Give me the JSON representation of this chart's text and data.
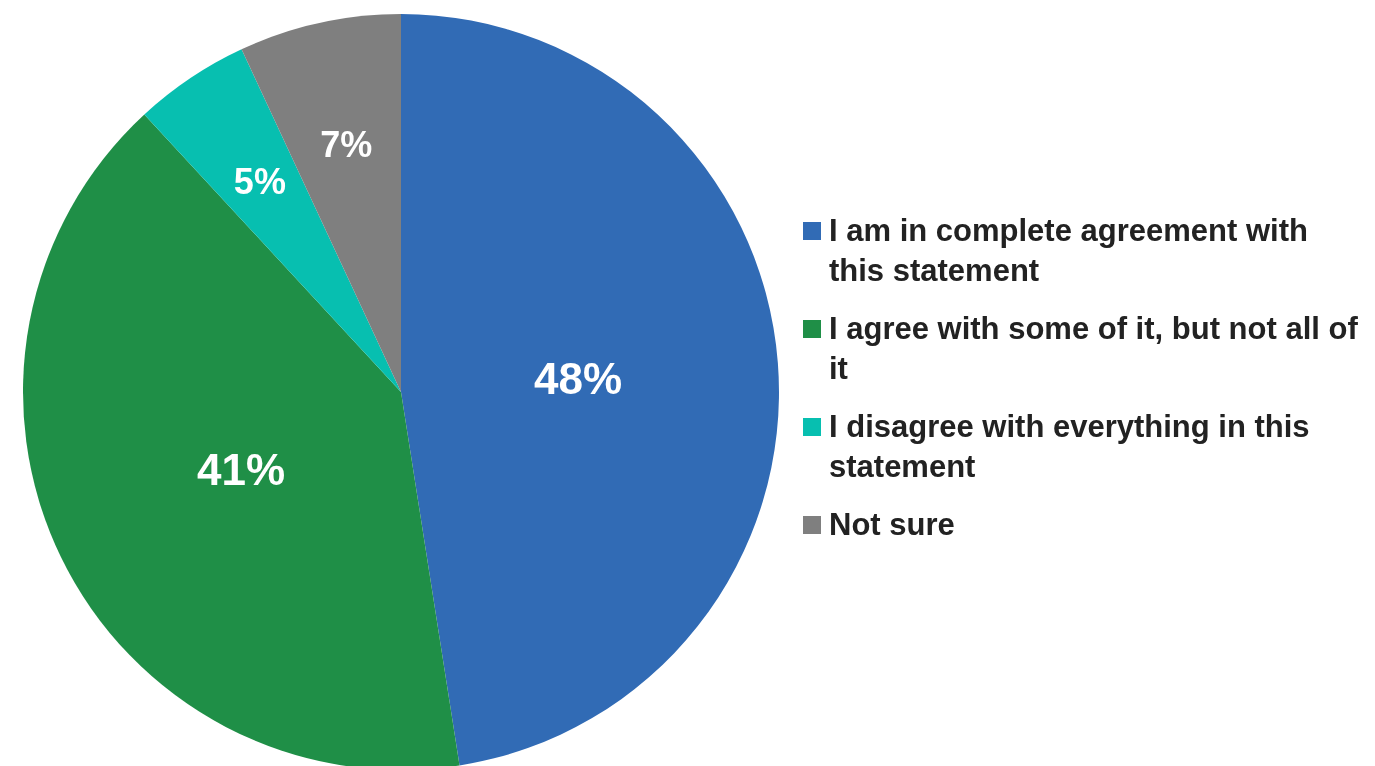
{
  "chart_data": {
    "type": "pie",
    "categories": [
      "I am in complete agreement with this statement",
      "I agree with some of it, but not all of it",
      "I disagree with everything in this statement",
      "Not sure"
    ],
    "values": [
      48,
      41,
      5,
      7
    ],
    "colors": [
      "#316bb5",
      "#1f8f47",
      "#07bfb0",
      "#7f7f7f"
    ],
    "value_labels": [
      "48%",
      "41%",
      "5%",
      "7%"
    ],
    "legend": "right"
  }
}
